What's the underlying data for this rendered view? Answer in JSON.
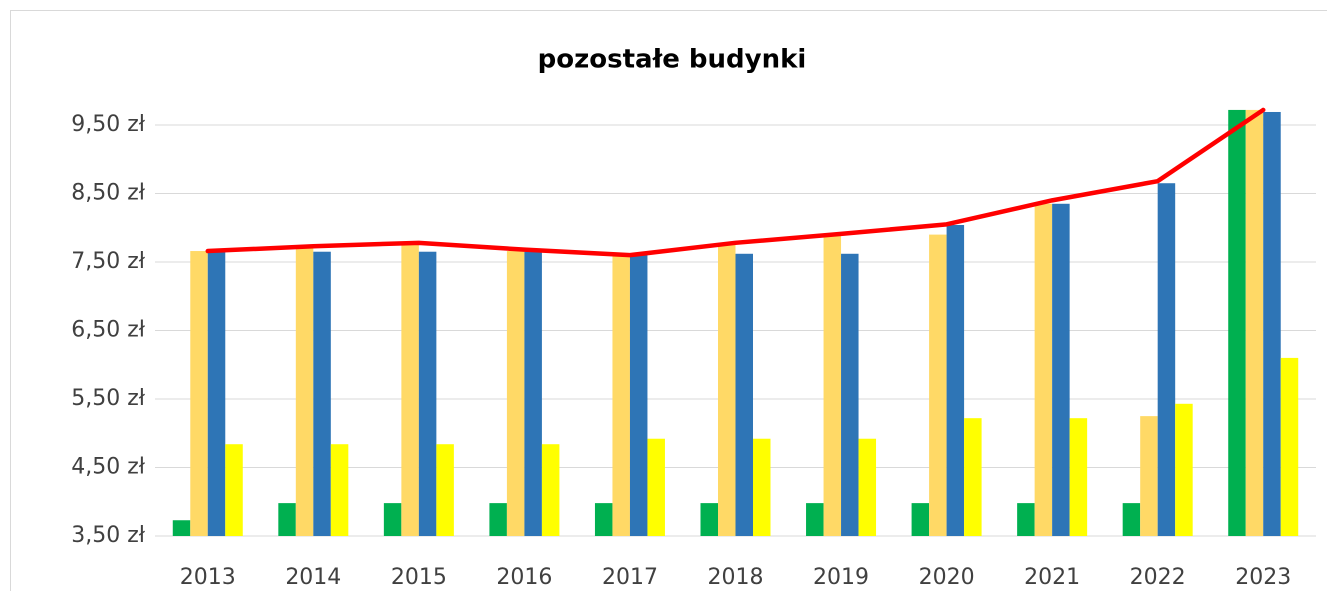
{
  "chart_data": {
    "type": "bar",
    "title": "pozostałe budynki",
    "categories": [
      "2013",
      "2014",
      "2015",
      "2016",
      "2017",
      "2018",
      "2019",
      "2020",
      "2021",
      "2022",
      "2023"
    ],
    "series": [
      {
        "type": "bar",
        "color": "#00b050",
        "values": [
          3.73,
          3.98,
          3.98,
          3.98,
          3.98,
          3.98,
          3.98,
          3.98,
          3.98,
          3.98,
          9.72
        ]
      },
      {
        "type": "bar",
        "color": "#ffd966",
        "values": [
          7.66,
          7.7,
          7.75,
          7.66,
          7.6,
          7.75,
          7.88,
          7.9,
          8.35,
          5.25,
          9.72
        ]
      },
      {
        "type": "bar",
        "color": "#2e75b6",
        "values": [
          7.65,
          7.65,
          7.65,
          7.65,
          7.6,
          7.62,
          7.62,
          8.04,
          8.35,
          8.65,
          9.69
        ]
      },
      {
        "type": "bar",
        "color": "#ffff00",
        "values": [
          4.84,
          4.84,
          4.84,
          4.84,
          4.92,
          4.92,
          4.92,
          5.22,
          5.22,
          5.43,
          6.1
        ]
      },
      {
        "type": "line",
        "color": "#ff0000",
        "values": [
          7.66,
          7.73,
          7.78,
          7.68,
          7.6,
          7.78,
          7.91,
          8.05,
          8.4,
          8.68,
          9.72
        ]
      }
    ],
    "ylim": [
      3.5,
      10.0
    ],
    "yticks": [
      {
        "value": 3.5,
        "label": "3,50 zł"
      },
      {
        "value": 4.5,
        "label": "4,50 zł"
      },
      {
        "value": 5.5,
        "label": "5,50 zł"
      },
      {
        "value": 6.5,
        "label": "6,50 zł"
      },
      {
        "value": 7.5,
        "label": "7,50 zł"
      },
      {
        "value": 8.5,
        "label": "8,50 zł"
      },
      {
        "value": 9.5,
        "label": "9,50 zł"
      }
    ],
    "grid": true
  }
}
